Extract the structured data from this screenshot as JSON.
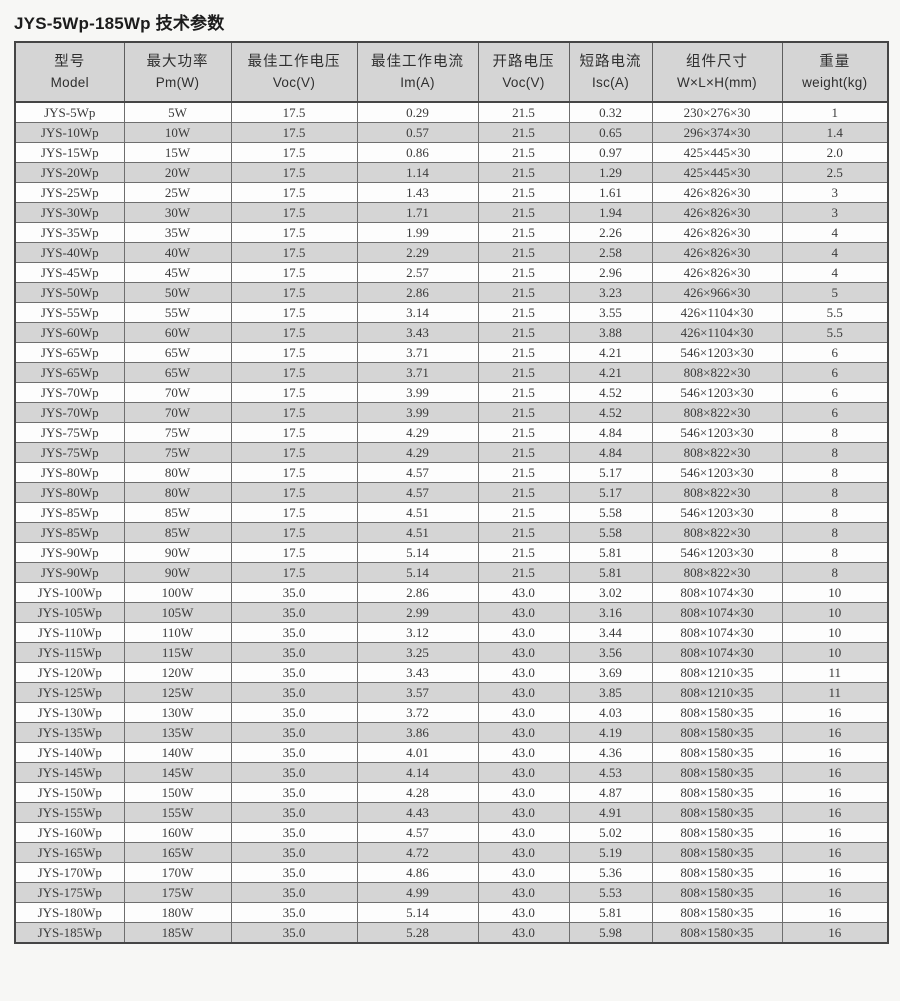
{
  "title": "JYS-5Wp-185Wp 技术参数",
  "colors": {
    "page_background": "#f7f7f5",
    "stripe_gray": "#d5d5d5",
    "row_white": "#fdfdfd",
    "border_outer": "#454545",
    "border_inner": "#6e6e6e",
    "text": "#3a3a3a",
    "title_text": "#1c1c1c"
  },
  "table": {
    "columns": [
      {
        "zh": "型号",
        "en": "Model"
      },
      {
        "zh": "最大功率",
        "en": "Pm(W)"
      },
      {
        "zh": "最佳工作电压",
        "en": "Voc(V)"
      },
      {
        "zh": "最佳工作电流",
        "en": "Im(A)"
      },
      {
        "zh": "开路电压",
        "en": "Voc(V)"
      },
      {
        "zh": "短路电流",
        "en": "Isc(A)"
      },
      {
        "zh": "组件尺寸",
        "en": "W×L×H(mm)"
      },
      {
        "zh": "重量",
        "en": "weight(kg)"
      }
    ],
    "rows": [
      [
        "JYS-5Wp",
        "5W",
        "17.5",
        "0.29",
        "21.5",
        "0.32",
        "230×276×30",
        "1"
      ],
      [
        "JYS-10Wp",
        "10W",
        "17.5",
        "0.57",
        "21.5",
        "0.65",
        "296×374×30",
        "1.4"
      ],
      [
        "JYS-15Wp",
        "15W",
        "17.5",
        "0.86",
        "21.5",
        "0.97",
        "425×445×30",
        "2.0"
      ],
      [
        "JYS-20Wp",
        "20W",
        "17.5",
        "1.14",
        "21.5",
        "1.29",
        "425×445×30",
        "2.5"
      ],
      [
        "JYS-25Wp",
        "25W",
        "17.5",
        "1.43",
        "21.5",
        "1.61",
        "426×826×30",
        "3"
      ],
      [
        "JYS-30Wp",
        "30W",
        "17.5",
        "1.71",
        "21.5",
        "1.94",
        "426×826×30",
        "3"
      ],
      [
        "JYS-35Wp",
        "35W",
        "17.5",
        "1.99",
        "21.5",
        "2.26",
        "426×826×30",
        "4"
      ],
      [
        "JYS-40Wp",
        "40W",
        "17.5",
        "2.29",
        "21.5",
        "2.58",
        "426×826×30",
        "4"
      ],
      [
        "JYS-45Wp",
        "45W",
        "17.5",
        "2.57",
        "21.5",
        "2.96",
        "426×826×30",
        "4"
      ],
      [
        "JYS-50Wp",
        "50W",
        "17.5",
        "2.86",
        "21.5",
        "3.23",
        "426×966×30",
        "5"
      ],
      [
        "JYS-55Wp",
        "55W",
        "17.5",
        "3.14",
        "21.5",
        "3.55",
        "426×1104×30",
        "5.5"
      ],
      [
        "JYS-60Wp",
        "60W",
        "17.5",
        "3.43",
        "21.5",
        "3.88",
        "426×1104×30",
        "5.5"
      ],
      [
        "JYS-65Wp",
        "65W",
        "17.5",
        "3.71",
        "21.5",
        "4.21",
        "546×1203×30",
        "6"
      ],
      [
        "JYS-65Wp",
        "65W",
        "17.5",
        "3.71",
        "21.5",
        "4.21",
        "808×822×30",
        "6"
      ],
      [
        "JYS-70Wp",
        "70W",
        "17.5",
        "3.99",
        "21.5",
        "4.52",
        "546×1203×30",
        "6"
      ],
      [
        "JYS-70Wp",
        "70W",
        "17.5",
        "3.99",
        "21.5",
        "4.52",
        "808×822×30",
        "6"
      ],
      [
        "JYS-75Wp",
        "75W",
        "17.5",
        "4.29",
        "21.5",
        "4.84",
        "546×1203×30",
        "8"
      ],
      [
        "JYS-75Wp",
        "75W",
        "17.5",
        "4.29",
        "21.5",
        "4.84",
        "808×822×30",
        "8"
      ],
      [
        "JYS-80Wp",
        "80W",
        "17.5",
        "4.57",
        "21.5",
        "5.17",
        "546×1203×30",
        "8"
      ],
      [
        "JYS-80Wp",
        "80W",
        "17.5",
        "4.57",
        "21.5",
        "5.17",
        "808×822×30",
        "8"
      ],
      [
        "JYS-85Wp",
        "85W",
        "17.5",
        "4.51",
        "21.5",
        "5.58",
        "546×1203×30",
        "8"
      ],
      [
        "JYS-85Wp",
        "85W",
        "17.5",
        "4.51",
        "21.5",
        "5.58",
        "808×822×30",
        "8"
      ],
      [
        "JYS-90Wp",
        "90W",
        "17.5",
        "5.14",
        "21.5",
        "5.81",
        "546×1203×30",
        "8"
      ],
      [
        "JYS-90Wp",
        "90W",
        "17.5",
        "5.14",
        "21.5",
        "5.81",
        "808×822×30",
        "8"
      ],
      [
        "JYS-100Wp",
        "100W",
        "35.0",
        "2.86",
        "43.0",
        "3.02",
        "808×1074×30",
        "10"
      ],
      [
        "JYS-105Wp",
        "105W",
        "35.0",
        "2.99",
        "43.0",
        "3.16",
        "808×1074×30",
        "10"
      ],
      [
        "JYS-110Wp",
        "110W",
        "35.0",
        "3.12",
        "43.0",
        "3.44",
        "808×1074×30",
        "10"
      ],
      [
        "JYS-115Wp",
        "115W",
        "35.0",
        "3.25",
        "43.0",
        "3.56",
        "808×1074×30",
        "10"
      ],
      [
        "JYS-120Wp",
        "120W",
        "35.0",
        "3.43",
        "43.0",
        "3.69",
        "808×1210×35",
        "11"
      ],
      [
        "JYS-125Wp",
        "125W",
        "35.0",
        "3.57",
        "43.0",
        "3.85",
        "808×1210×35",
        "11"
      ],
      [
        "JYS-130Wp",
        "130W",
        "35.0",
        "3.72",
        "43.0",
        "4.03",
        "808×1580×35",
        "16"
      ],
      [
        "JYS-135Wp",
        "135W",
        "35.0",
        "3.86",
        "43.0",
        "4.19",
        "808×1580×35",
        "16"
      ],
      [
        "JYS-140Wp",
        "140W",
        "35.0",
        "4.01",
        "43.0",
        "4.36",
        "808×1580×35",
        "16"
      ],
      [
        "JYS-145Wp",
        "145W",
        "35.0",
        "4.14",
        "43.0",
        "4.53",
        "808×1580×35",
        "16"
      ],
      [
        "JYS-150Wp",
        "150W",
        "35.0",
        "4.28",
        "43.0",
        "4.87",
        "808×1580×35",
        "16"
      ],
      [
        "JYS-155Wp",
        "155W",
        "35.0",
        "4.43",
        "43.0",
        "4.91",
        "808×1580×35",
        "16"
      ],
      [
        "JYS-160Wp",
        "160W",
        "35.0",
        "4.57",
        "43.0",
        "5.02",
        "808×1580×35",
        "16"
      ],
      [
        "JYS-165Wp",
        "165W",
        "35.0",
        "4.72",
        "43.0",
        "5.19",
        "808×1580×35",
        "16"
      ],
      [
        "JYS-170Wp",
        "170W",
        "35.0",
        "4.86",
        "43.0",
        "5.36",
        "808×1580×35",
        "16"
      ],
      [
        "JYS-175Wp",
        "175W",
        "35.0",
        "4.99",
        "43.0",
        "5.53",
        "808×1580×35",
        "16"
      ],
      [
        "JYS-180Wp",
        "180W",
        "35.0",
        "5.14",
        "43.0",
        "5.81",
        "808×1580×35",
        "16"
      ],
      [
        "JYS-185Wp",
        "185W",
        "35.0",
        "5.28",
        "43.0",
        "5.98",
        "808×1580×35",
        "16"
      ]
    ]
  }
}
